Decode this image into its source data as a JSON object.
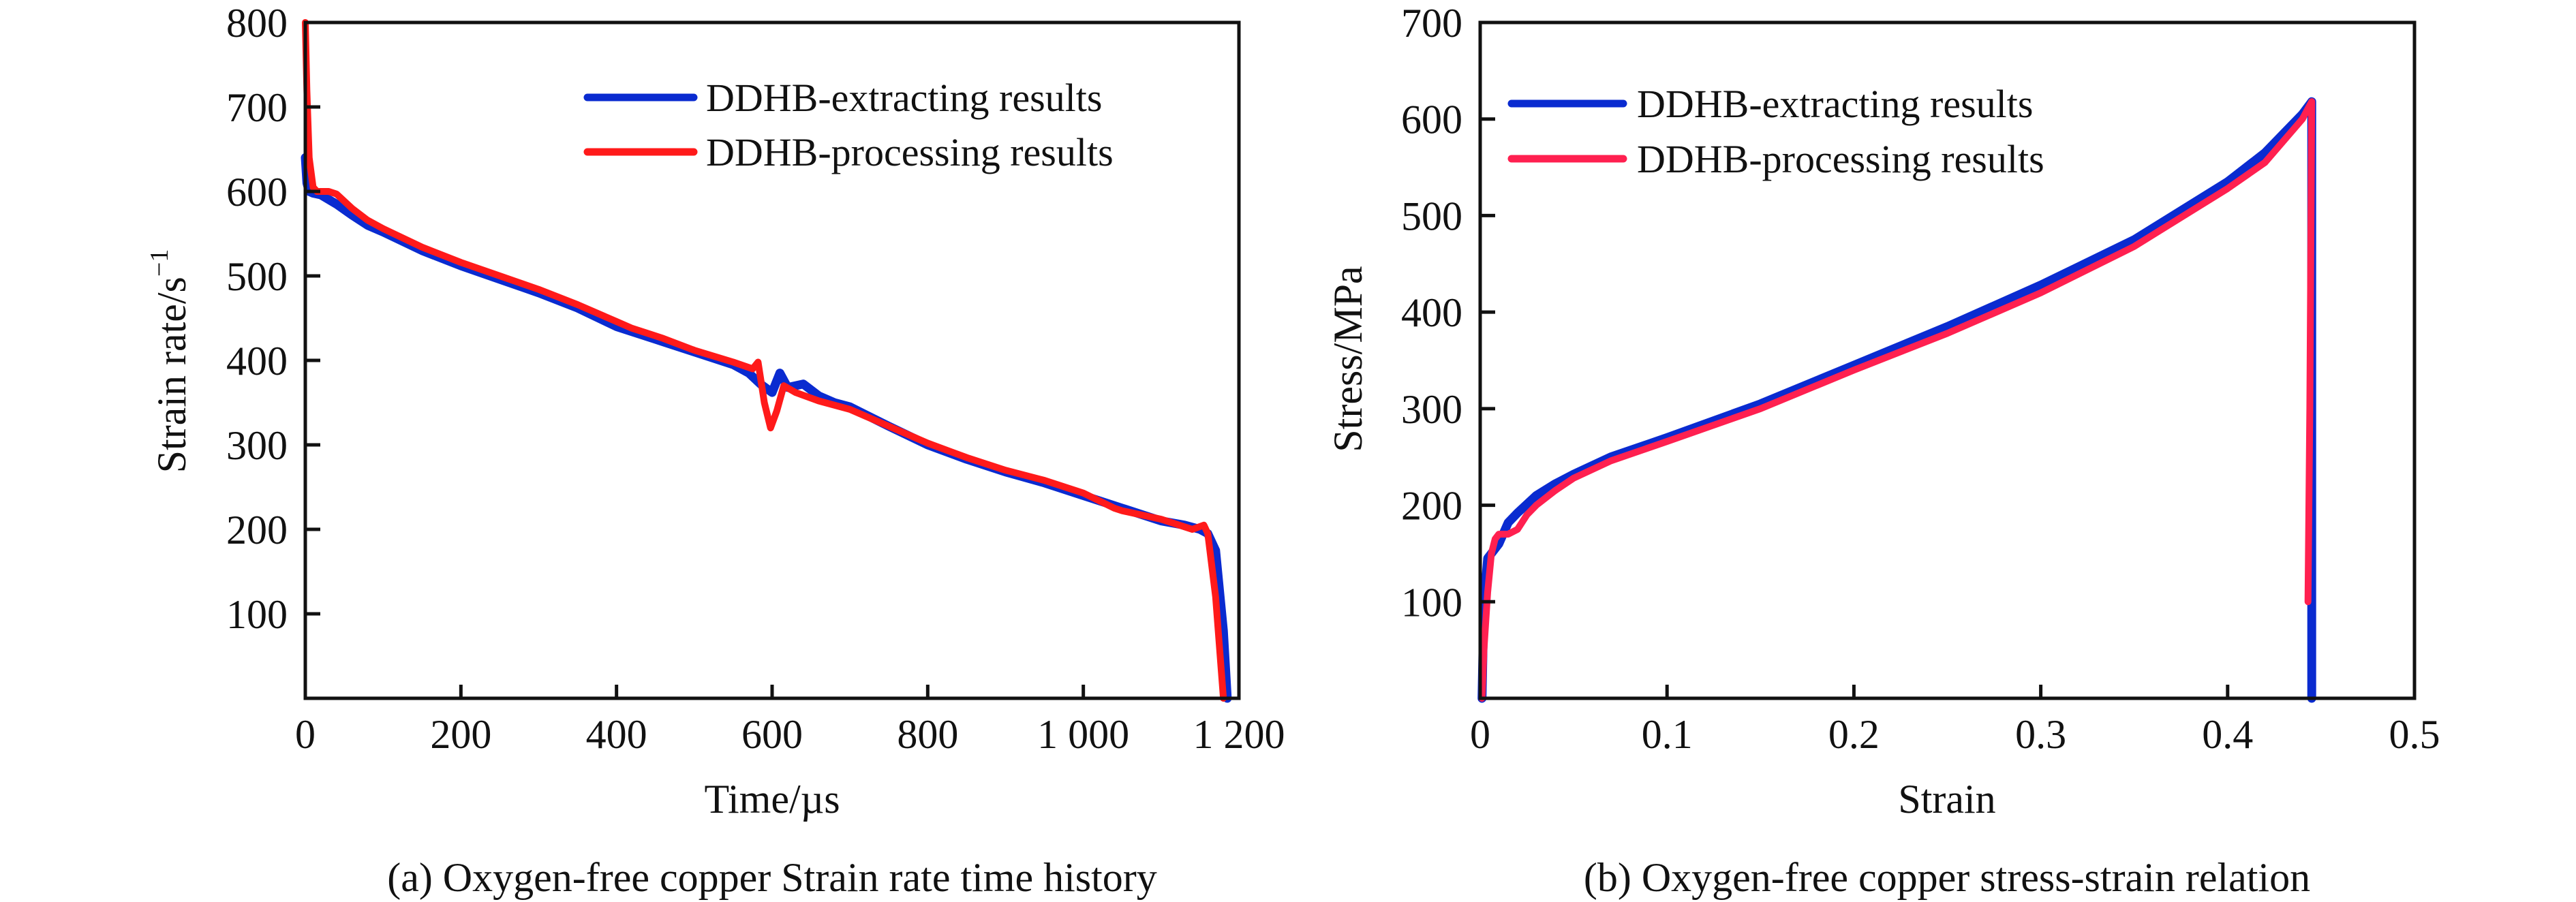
{
  "figure": {
    "panels": [
      {
        "id": "a",
        "caption": "(a) Oxygen-free copper Strain rate time history"
      },
      {
        "id": "b",
        "caption": "(b) Oxygen-free copper stress-strain relation"
      }
    ]
  },
  "colors": {
    "extracting": "#0a2bd0",
    "processing_a": "#ff1a1a",
    "processing_b": "#ff2050",
    "axis": "#111111"
  },
  "chart_data": [
    {
      "type": "line",
      "title": "(a) Oxygen-free copper Strain rate time history",
      "xlabel": "Time/µs",
      "ylabel_main": "Strain rate/s",
      "ylabel_sup": "−1",
      "xlim": [
        0,
        1200
      ],
      "ylim": [
        0,
        800
      ],
      "xticks": [
        0,
        200,
        400,
        600,
        800,
        1000,
        1200
      ],
      "xtick_labels": [
        "0",
        "200",
        "400",
        "600",
        "800",
        "1 000",
        "1 200"
      ],
      "yticks": [
        100,
        200,
        300,
        400,
        500,
        600,
        700,
        800
      ],
      "ytick_labels": [
        "100",
        "200",
        "300",
        "400",
        "500",
        "600",
        "700",
        "800"
      ],
      "grid": false,
      "legend_position": "top-right",
      "series": [
        {
          "name": "DDHB-extracting results",
          "color_key": "extracting",
          "x": [
            0,
            2,
            5,
            10,
            20,
            40,
            60,
            80,
            100,
            150,
            200,
            250,
            300,
            350,
            400,
            450,
            500,
            550,
            570,
            585,
            600,
            610,
            620,
            640,
            660,
            680,
            700,
            750,
            800,
            850,
            900,
            950,
            1000,
            1050,
            1100,
            1130,
            1150,
            1160,
            1170,
            1180,
            1185
          ],
          "y": [
            640,
            610,
            600,
            598,
            596,
            585,
            572,
            560,
            552,
            530,
            512,
            496,
            480,
            462,
            440,
            425,
            410,
            395,
            385,
            372,
            362,
            385,
            368,
            372,
            358,
            350,
            345,
            322,
            300,
            283,
            268,
            255,
            240,
            225,
            210,
            205,
            200,
            195,
            175,
            80,
            0
          ]
        },
        {
          "name": "DDHB-processing results",
          "color_key": "processing_a",
          "x": [
            0,
            2,
            5,
            10,
            15,
            20,
            30,
            40,
            60,
            80,
            100,
            150,
            200,
            250,
            300,
            350,
            400,
            420,
            440,
            460,
            500,
            550,
            575,
            582,
            590,
            598,
            606,
            615,
            630,
            660,
            700,
            750,
            800,
            850,
            900,
            950,
            1000,
            1040,
            1050,
            1100,
            1140,
            1155,
            1160,
            1170,
            1180
          ],
          "y": [
            800,
            720,
            640,
            605,
            600,
            600,
            600,
            597,
            580,
            566,
            556,
            534,
            516,
            500,
            484,
            466,
            446,
            438,
            432,
            426,
            412,
            398,
            390,
            398,
            350,
            320,
            340,
            370,
            362,
            352,
            342,
            322,
            302,
            285,
            270,
            258,
            243,
            225,
            222,
            212,
            200,
            205,
            195,
            120,
            0
          ]
        }
      ]
    },
    {
      "type": "line",
      "title": "(b) Oxygen-free copper stress-strain relation",
      "xlabel": "Strain",
      "ylabel": "Stress/MPa",
      "xlim": [
        0,
        0.5
      ],
      "ylim": [
        0,
        700
      ],
      "xticks": [
        0,
        0.1,
        0.2,
        0.3,
        0.4,
        0.5
      ],
      "xtick_labels": [
        "0",
        "0.1",
        "0.2",
        "0.3",
        "0.4",
        "0.5"
      ],
      "yticks": [
        100,
        200,
        300,
        400,
        500,
        600,
        700
      ],
      "ytick_labels": [
        "100",
        "200",
        "300",
        "400",
        "500",
        "600",
        "700"
      ],
      "grid": false,
      "legend_position": "top-left",
      "series": [
        {
          "name": "DDHB-extracting results",
          "color_key": "extracting",
          "x": [
            0.001,
            0.002,
            0.004,
            0.006,
            0.01,
            0.015,
            0.02,
            0.03,
            0.04,
            0.05,
            0.07,
            0.1,
            0.15,
            0.2,
            0.25,
            0.3,
            0.35,
            0.4,
            0.42,
            0.44,
            0.445,
            0.445,
            0.445
          ],
          "y": [
            0,
            100,
            145,
            150,
            160,
            182,
            192,
            210,
            222,
            232,
            250,
            270,
            305,
            345,
            385,
            428,
            475,
            535,
            565,
            605,
            618,
            300,
            0
          ]
        },
        {
          "name": "DDHB-processing results",
          "color_key": "processing_b",
          "x": [
            0.001,
            0.002,
            0.004,
            0.006,
            0.008,
            0.01,
            0.015,
            0.02,
            0.025,
            0.03,
            0.04,
            0.05,
            0.07,
            0.1,
            0.15,
            0.2,
            0.25,
            0.3,
            0.35,
            0.4,
            0.42,
            0.44,
            0.445,
            0.444,
            0.443
          ],
          "y": [
            0,
            50,
            110,
            150,
            165,
            170,
            170,
            175,
            190,
            200,
            215,
            228,
            246,
            266,
            300,
            340,
            378,
            420,
            468,
            528,
            555,
            600,
            618,
            300,
            100
          ]
        }
      ]
    }
  ]
}
